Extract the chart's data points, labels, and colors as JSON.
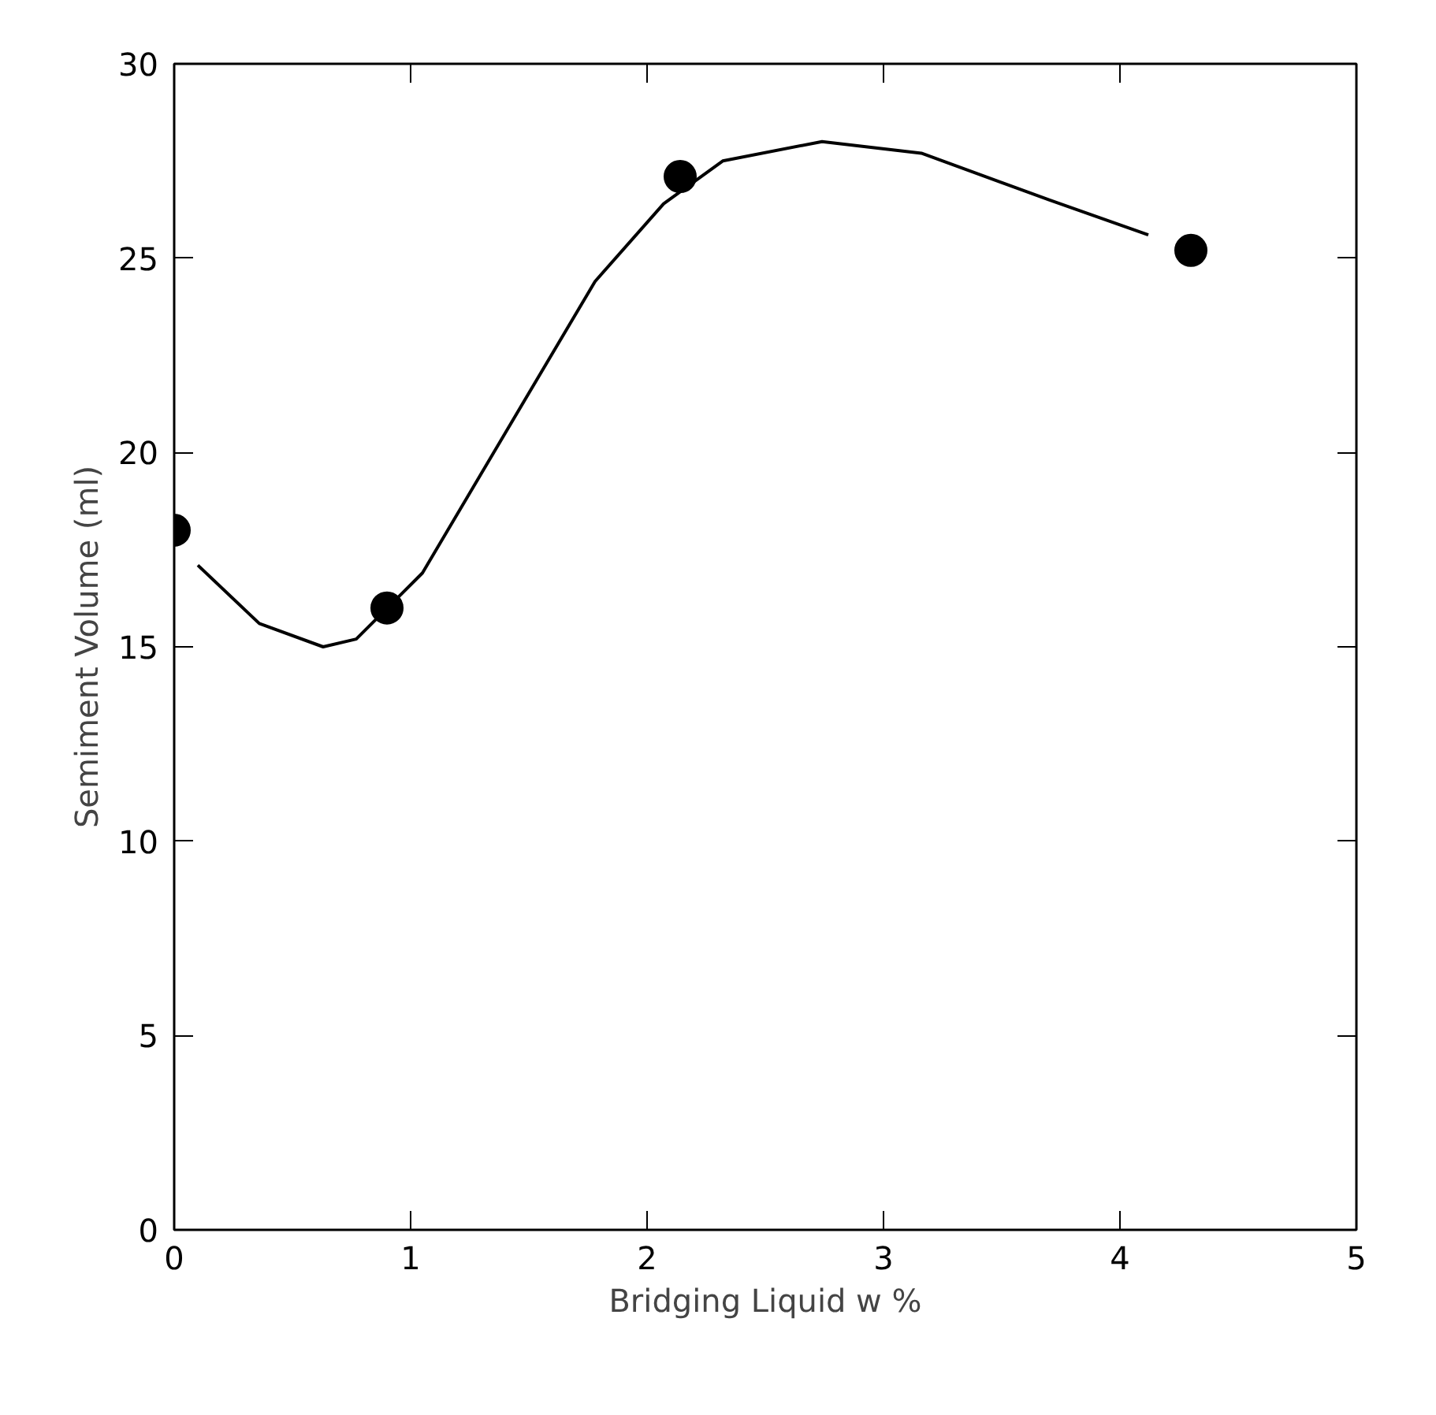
{
  "chart_data": {
    "type": "scatter",
    "xlabel": "Bridging Liquid w %",
    "ylabel": "Semiment Volume (ml)",
    "xlim": [
      0,
      5
    ],
    "ylim": [
      0,
      30
    ],
    "xticks": [
      0,
      1,
      2,
      3,
      4,
      5
    ],
    "yticks": [
      0,
      5,
      10,
      15,
      20,
      25,
      30
    ],
    "grid": false,
    "series": [
      {
        "type": "line",
        "color": "#000000",
        "marker": "none",
        "x": [
          0.1,
          0.36,
          0.63,
          0.77,
          1.05,
          1.4,
          1.78,
          2.07,
          2.32,
          2.74,
          3.16,
          3.7,
          4.12
        ],
        "values": [
          17.1,
          15.6,
          15.0,
          15.2,
          16.9,
          20.5,
          24.4,
          26.4,
          27.5,
          28.0,
          27.7,
          26.5,
          25.6
        ]
      },
      {
        "color": "#000000",
        "marker": "circle",
        "x": [
          0,
          0.9,
          2.14,
          4.3
        ],
        "values": [
          18,
          16,
          27.1,
          25.2
        ]
      }
    ]
  }
}
